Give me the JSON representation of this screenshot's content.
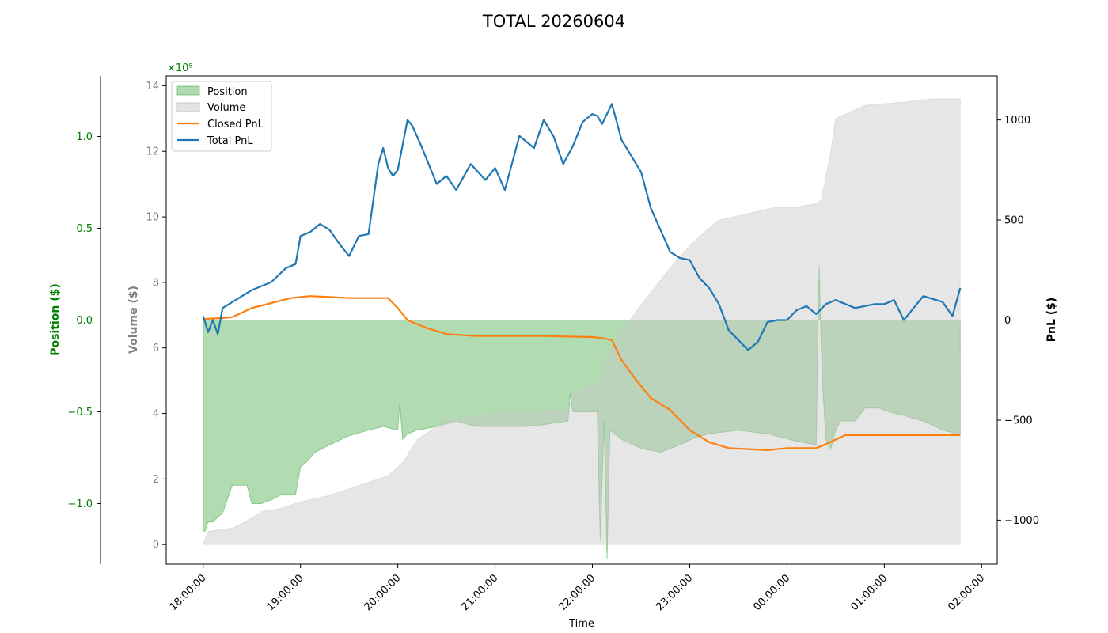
{
  "chart_data": {
    "type": "line",
    "title": "TOTAL 20260604",
    "xlabel": "Time",
    "x_ticks": [
      "18:00:00",
      "19:00:00",
      "20:00:00",
      "21:00:00",
      "22:00:00",
      "23:00:00",
      "00:00:00",
      "01:00:00",
      "02:00:00"
    ],
    "x_range_hours": [
      17.62,
      26.16
    ],
    "x_data_range_hours": [
      18.0,
      25.78
    ],
    "axes": {
      "position": {
        "label": "Position ($)",
        "color": "#008000",
        "range": [
          -1.33,
          1.33
        ],
        "offset_text": "",
        "ticks": [
          -1.0,
          -0.5,
          0.0,
          0.5,
          1.0
        ],
        "tick_labels": [
          "−1.0",
          "−0.5",
          "0.0",
          "0.5",
          "1.0"
        ]
      },
      "volume": {
        "label": "Volume ($)",
        "color": "#808080",
        "range": [
          -0.6,
          14.3
        ],
        "offset_text": "×10⁵",
        "ticks": [
          0,
          2,
          4,
          6,
          8,
          10,
          12,
          14
        ],
        "tick_labels": [
          "0",
          "2",
          "4",
          "6",
          "8",
          "10",
          "12",
          "14"
        ]
      },
      "pnl": {
        "label": "PnL ($)",
        "color": "#000000",
        "range": [
          -1220,
          1220
        ],
        "ticks": [
          -1000,
          -500,
          0,
          500,
          1000
        ],
        "tick_labels": [
          "−1000",
          "−500",
          "0",
          "500",
          "1000"
        ]
      }
    },
    "legend": {
      "placement": "upper-left",
      "entries": [
        "Position",
        "Volume",
        "Closed PnL",
        "Total PnL"
      ]
    },
    "series": [
      {
        "name": "Position",
        "kind": "area",
        "axis": "position",
        "color": "#2ca02c",
        "x": [
          18.0,
          18.02,
          18.05,
          18.1,
          18.2,
          18.3,
          18.45,
          18.5,
          18.55,
          18.6,
          18.7,
          18.8,
          18.95,
          19.0,
          19.05,
          19.15,
          19.3,
          19.5,
          19.7,
          19.85,
          20.0,
          20.02,
          20.05,
          20.1,
          20.2,
          20.4,
          20.6,
          20.8,
          21.0,
          21.3,
          21.5,
          21.75,
          21.77,
          21.8,
          22.05,
          22.08,
          22.12,
          22.15,
          22.18,
          22.3,
          22.5,
          22.7,
          22.8,
          22.9,
          23.05,
          23.2,
          23.5,
          23.8,
          24.1,
          24.3,
          24.33,
          24.36,
          24.4,
          24.45,
          24.5,
          24.55,
          24.7,
          24.8,
          24.95,
          25.05,
          25.2,
          25.4,
          25.6,
          25.75,
          25.78
        ],
        "values": [
          -1.15,
          -1.15,
          -1.1,
          -1.1,
          -1.05,
          -0.9,
          -0.9,
          -1.0,
          -1.0,
          -1.0,
          -0.98,
          -0.95,
          -0.95,
          -0.8,
          -0.78,
          -0.72,
          -0.68,
          -0.63,
          -0.6,
          -0.58,
          -0.6,
          -0.45,
          -0.65,
          -0.62,
          -0.6,
          -0.58,
          -0.55,
          -0.58,
          -0.58,
          -0.58,
          -0.57,
          -0.55,
          -0.4,
          -0.5,
          -0.5,
          -1.2,
          -0.55,
          -1.3,
          -0.6,
          -0.65,
          -0.7,
          -0.72,
          -0.7,
          -0.68,
          -0.64,
          -0.62,
          -0.6,
          -0.62,
          -0.66,
          -0.68,
          0.3,
          -0.3,
          -0.65,
          -0.7,
          -0.6,
          -0.55,
          -0.55,
          -0.48,
          -0.48,
          -0.5,
          -0.52,
          -0.55,
          -0.6,
          -0.62,
          -0.62
        ]
      },
      {
        "name": "Volume",
        "kind": "area",
        "axis": "volume",
        "color": "#c8c8c8",
        "x": [
          18.0,
          18.05,
          18.3,
          18.5,
          18.6,
          18.8,
          19.0,
          19.3,
          19.6,
          19.9,
          20.05,
          20.2,
          20.5,
          21.0,
          21.5,
          21.75,
          21.8,
          22.1,
          22.15,
          22.3,
          22.6,
          22.9,
          23.1,
          23.3,
          23.6,
          23.9,
          24.1,
          24.3,
          24.35,
          24.45,
          24.5,
          24.8,
          25.2,
          25.5,
          25.78
        ],
        "values": [
          0.0,
          0.4,
          0.5,
          0.8,
          1.0,
          1.1,
          1.3,
          1.5,
          1.8,
          2.1,
          2.5,
          3.2,
          3.8,
          4.0,
          4.1,
          4.1,
          4.6,
          5.0,
          5.8,
          6.5,
          7.7,
          8.8,
          9.4,
          9.9,
          10.1,
          10.3,
          10.3,
          10.4,
          10.5,
          12.0,
          13.0,
          13.4,
          13.5,
          13.6,
          13.6
        ]
      },
      {
        "name": "Closed PnL",
        "kind": "line",
        "axis": "pnl",
        "color": "#ff7f0e",
        "x": [
          18.0,
          18.1,
          18.2,
          18.3,
          18.5,
          18.7,
          18.9,
          19.1,
          19.3,
          19.5,
          19.7,
          19.9,
          20.0,
          20.1,
          20.3,
          20.5,
          20.8,
          21.2,
          21.5,
          22.0,
          22.1,
          22.2,
          22.3,
          22.45,
          22.6,
          22.8,
          23.0,
          23.2,
          23.4,
          23.6,
          23.8,
          24.0,
          24.3,
          24.4,
          24.6,
          25.0,
          25.5,
          25.78
        ],
        "values": [
          5,
          8,
          10,
          15,
          60,
          85,
          110,
          120,
          115,
          110,
          110,
          110,
          60,
          0,
          -40,
          -70,
          -80,
          -80,
          -80,
          -85,
          -90,
          -100,
          -200,
          -300,
          -390,
          -450,
          -550,
          -610,
          -640,
          -645,
          -650,
          -640,
          -640,
          -620,
          -575,
          -575,
          -575,
          -575
        ]
      },
      {
        "name": "Total PnL",
        "kind": "line",
        "axis": "pnl",
        "color": "#1f77b4",
        "x": [
          18.0,
          18.05,
          18.1,
          18.15,
          18.2,
          18.3,
          18.5,
          18.7,
          18.85,
          18.95,
          19.0,
          19.1,
          19.2,
          19.3,
          19.4,
          19.5,
          19.6,
          19.7,
          19.8,
          19.85,
          19.9,
          19.95,
          20.0,
          20.1,
          20.15,
          20.25,
          20.4,
          20.5,
          20.6,
          20.75,
          20.9,
          21.0,
          21.1,
          21.25,
          21.4,
          21.5,
          21.6,
          21.7,
          21.8,
          21.9,
          22.0,
          22.05,
          22.1,
          22.2,
          22.3,
          22.4,
          22.5,
          22.6,
          22.7,
          22.8,
          22.9,
          23.0,
          23.1,
          23.2,
          23.3,
          23.4,
          23.5,
          23.6,
          23.7,
          23.8,
          23.9,
          24.0,
          24.1,
          24.2,
          24.3,
          24.4,
          24.5,
          24.7,
          24.9,
          25.0,
          25.1,
          25.2,
          25.4,
          25.6,
          25.7,
          25.78
        ],
        "values": [
          20,
          -60,
          0,
          -70,
          60,
          90,
          150,
          190,
          260,
          280,
          420,
          440,
          480,
          450,
          380,
          320,
          420,
          430,
          780,
          860,
          760,
          720,
          750,
          1000,
          970,
          860,
          680,
          720,
          650,
          780,
          700,
          760,
          650,
          920,
          860,
          1000,
          920,
          780,
          870,
          990,
          1030,
          1020,
          980,
          1080,
          900,
          820,
          740,
          560,
          450,
          340,
          310,
          300,
          210,
          160,
          80,
          -50,
          -100,
          -150,
          -110,
          -10,
          0,
          0,
          50,
          70,
          30,
          80,
          100,
          60,
          80,
          80,
          100,
          0,
          120,
          90,
          20,
          160
        ]
      }
    ]
  }
}
